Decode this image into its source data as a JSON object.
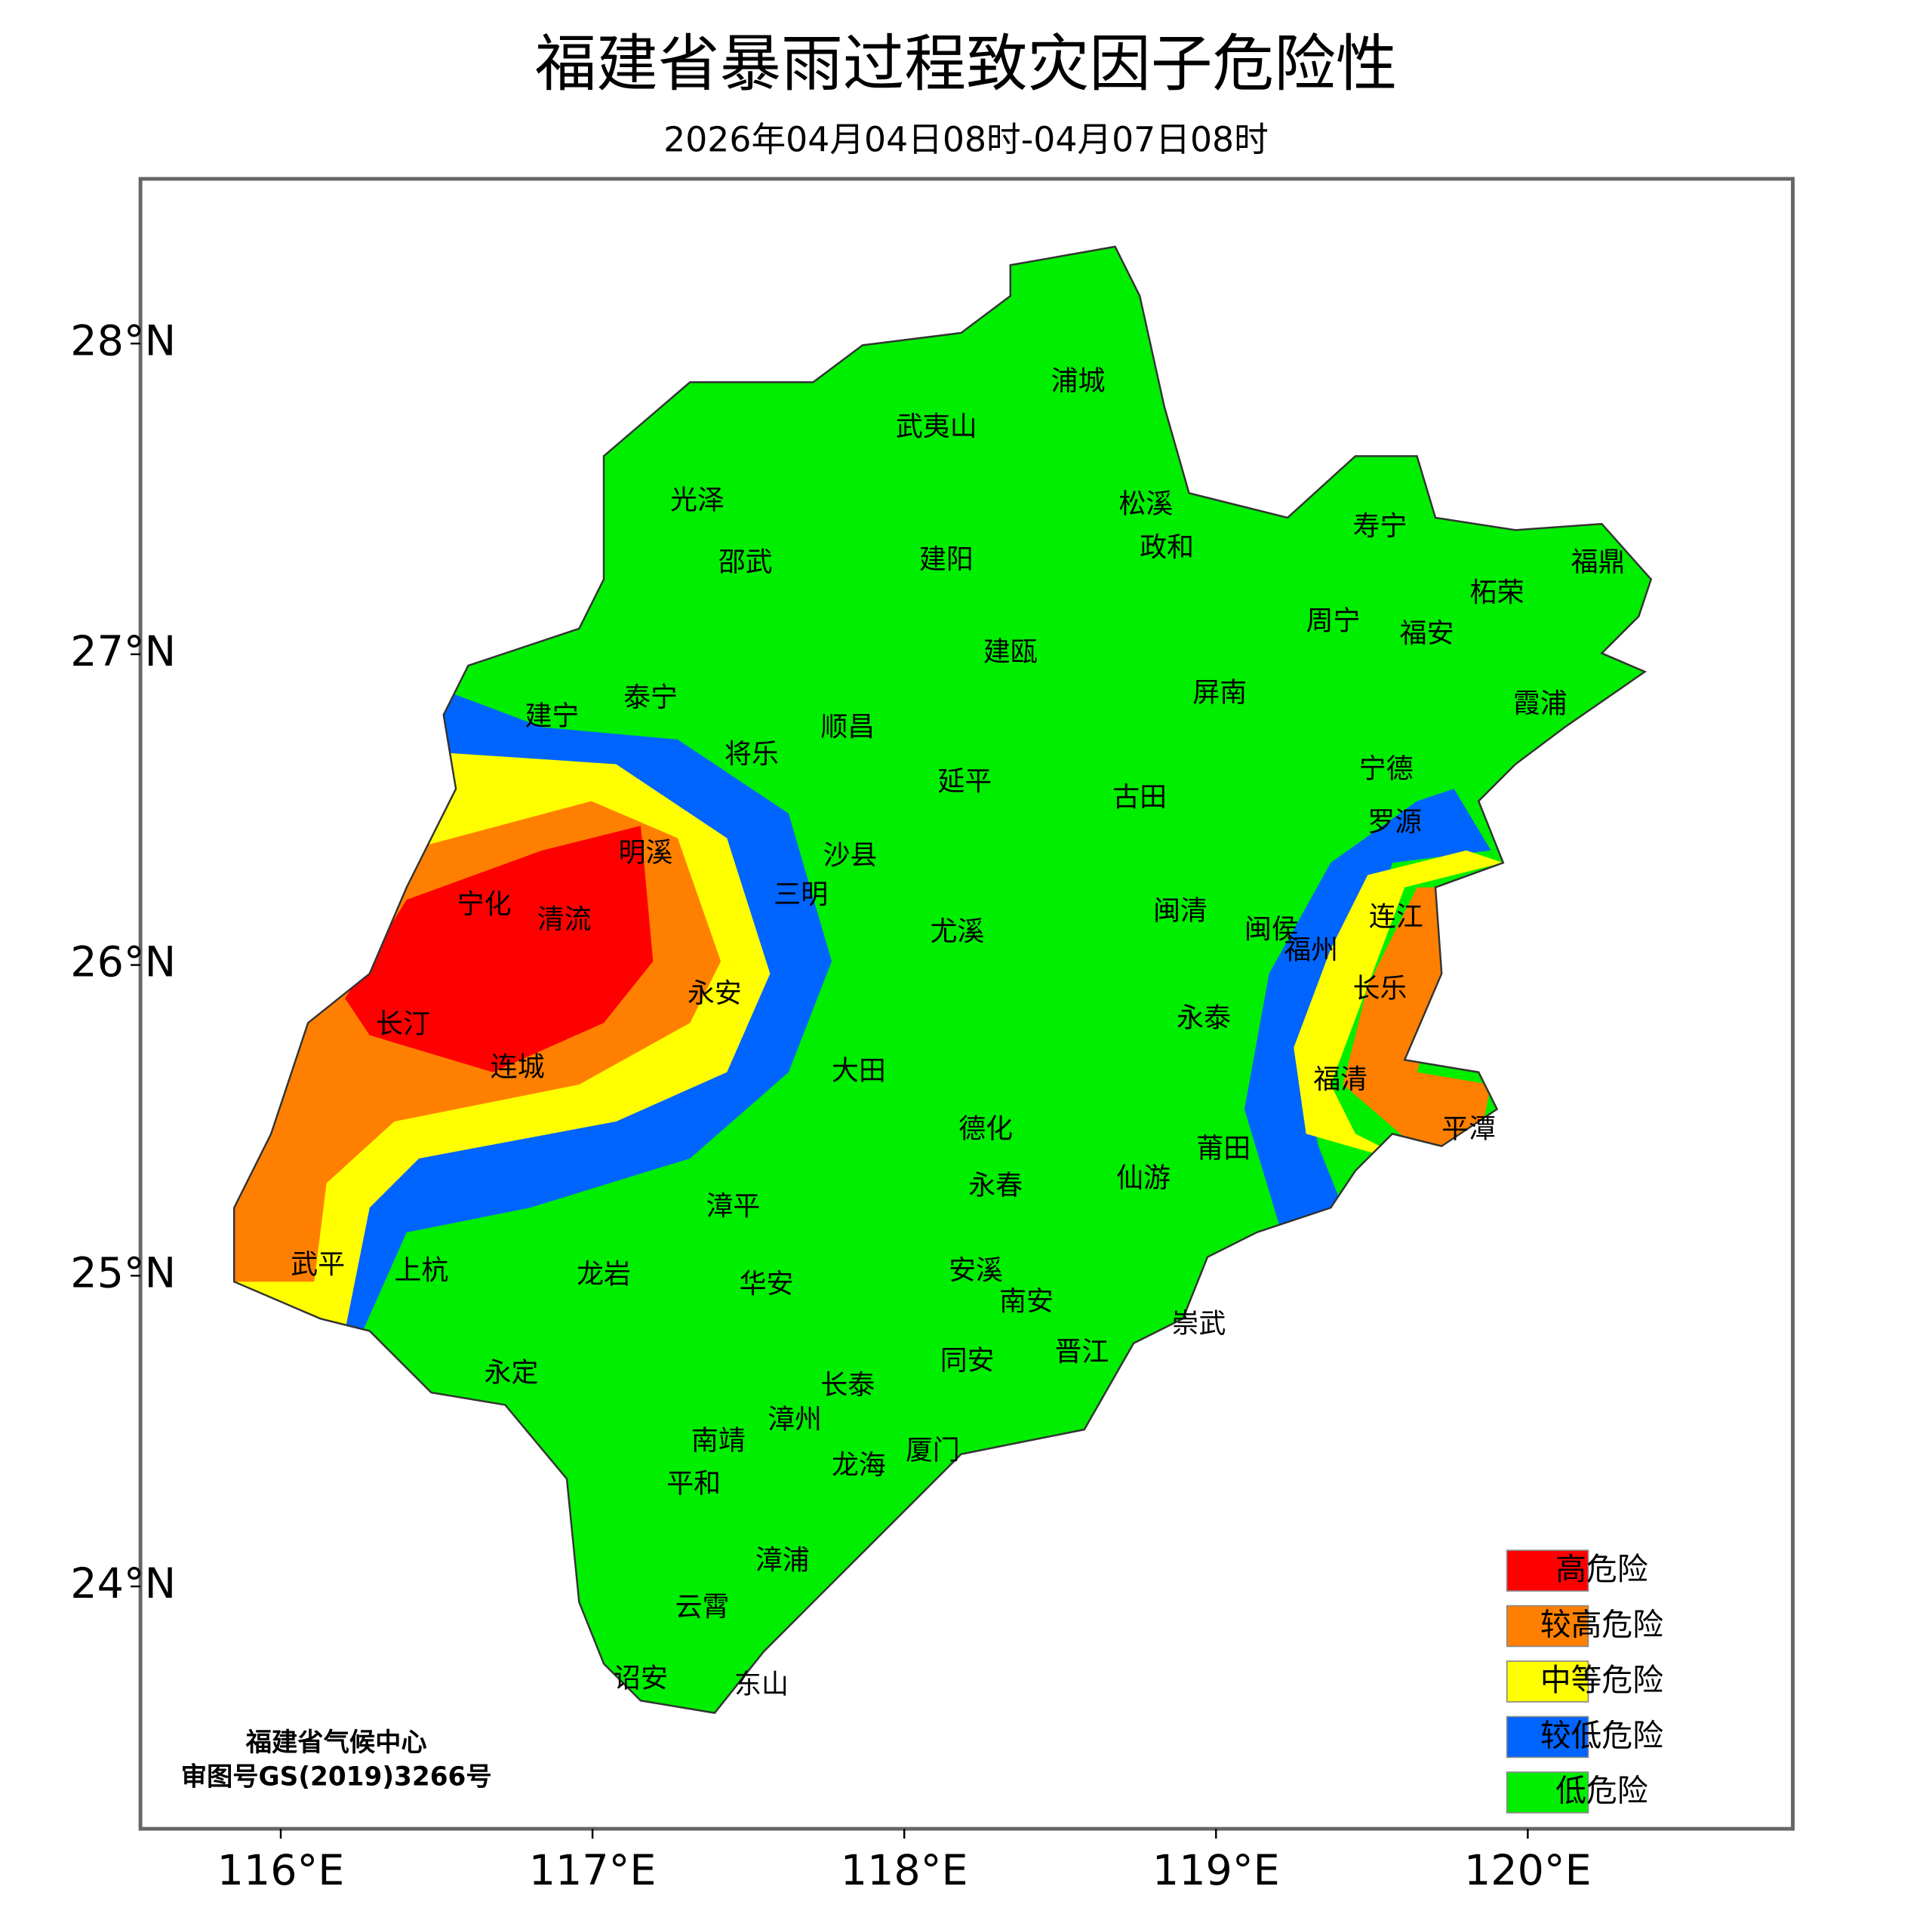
{
  "title": "福建省暴雨过程致灾因子危险性",
  "subtitle": "2026年04月04日08时-04月07日08时",
  "map": {
    "xlim": [
      115.55,
      120.85
    ],
    "ylim": [
      23.22,
      28.53
    ],
    "xticks": [
      {
        "value": 116,
        "label": "116°E"
      },
      {
        "value": 117,
        "label": "117°E"
      },
      {
        "value": 118,
        "label": "118°E"
      },
      {
        "value": 119,
        "label": "119°E"
      },
      {
        "value": 120,
        "label": "120°E"
      }
    ],
    "yticks": [
      {
        "value": 24,
        "label": "24°N"
      },
      {
        "value": 25,
        "label": "25°N"
      },
      {
        "value": 26,
        "label": "26°N"
      },
      {
        "value": 27,
        "label": "27°N"
      },
      {
        "value": 28,
        "label": "28°N"
      }
    ]
  },
  "places": [
    "浦城",
    "武夷山",
    "光泽",
    "松溪",
    "寿宁",
    "邵武",
    "建阳",
    "政和",
    "福鼎",
    "柘荣",
    "周宁",
    "福安",
    "建瓯",
    "泰宁",
    "建宁",
    "屏南",
    "霞浦",
    "顺昌",
    "将乐",
    "宁德",
    "延平",
    "古田",
    "罗源",
    "明溪",
    "沙县",
    "三明",
    "宁化",
    "清流",
    "闽清",
    "闽侯",
    "连江",
    "福州",
    "尤溪",
    "永安",
    "长乐",
    "长汀",
    "永泰",
    "连城",
    "大田",
    "福清",
    "德化",
    "平潭",
    "莆田",
    "永春",
    "仙游",
    "漳平",
    "武平",
    "上杭",
    "龙岩",
    "安溪",
    "华安",
    "南安",
    "崇武",
    "晋江",
    "同安",
    "永定",
    "长泰",
    "漳州",
    "南靖",
    "厦门",
    "龙海",
    "平和",
    "漳浦",
    "云霄",
    "诏安",
    "东山"
  ],
  "legend": [
    {
      "name": "高危险",
      "color": "#ff0000"
    },
    {
      "name": "较高危险",
      "color": "#ff8000"
    },
    {
      "name": "中等危险",
      "color": "#ffff00"
    },
    {
      "name": "较低危险",
      "color": "#0064ff"
    },
    {
      "name": "低危险",
      "color": "#00ee00"
    }
  ],
  "credit": [
    "福建省气候中心",
    "审图号GS(2019)3266号"
  ]
}
